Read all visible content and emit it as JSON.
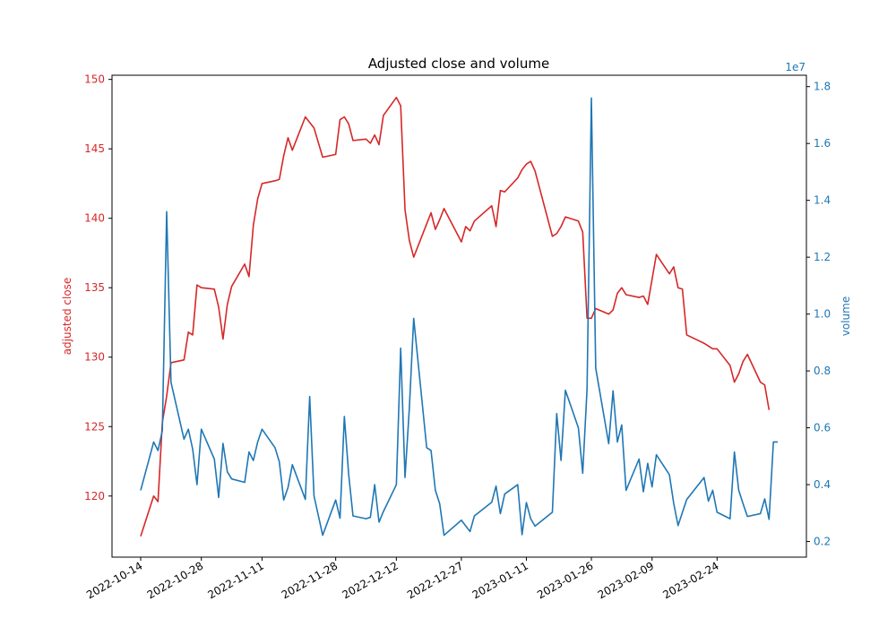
{
  "chart_data": {
    "type": "line",
    "title": "Adjusted close and volume",
    "x_dates": [
      "2022-10-14",
      "2022-10-17",
      "2022-10-18",
      "2022-10-19",
      "2022-10-20",
      "2022-10-21",
      "2022-10-24",
      "2022-10-25",
      "2022-10-26",
      "2022-10-27",
      "2022-10-28",
      "2022-10-31",
      "2022-11-01",
      "2022-11-02",
      "2022-11-03",
      "2022-11-04",
      "2022-11-07",
      "2022-11-08",
      "2022-11-09",
      "2022-11-10",
      "2022-11-11",
      "2022-11-14",
      "2022-11-15",
      "2022-11-16",
      "2022-11-17",
      "2022-11-18",
      "2022-11-21",
      "2022-11-22",
      "2022-11-23",
      "2022-11-25",
      "2022-11-28",
      "2022-11-29",
      "2022-11-30",
      "2022-12-01",
      "2022-12-02",
      "2022-12-05",
      "2022-12-06",
      "2022-12-07",
      "2022-12-08",
      "2022-12-09",
      "2022-12-12",
      "2022-12-13",
      "2022-12-14",
      "2022-12-15",
      "2022-12-16",
      "2022-12-19",
      "2022-12-20",
      "2022-12-21",
      "2022-12-22",
      "2022-12-23",
      "2022-12-27",
      "2022-12-28",
      "2022-12-29",
      "2022-12-30",
      "2023-01-03",
      "2023-01-04",
      "2023-01-05",
      "2023-01-06",
      "2023-01-09",
      "2023-01-10",
      "2023-01-11",
      "2023-01-12",
      "2023-01-13",
      "2023-01-17",
      "2023-01-18",
      "2023-01-19",
      "2023-01-20",
      "2023-01-23",
      "2023-01-24",
      "2023-01-25",
      "2023-01-26",
      "2023-01-27",
      "2023-01-30",
      "2023-01-31",
      "2023-02-01",
      "2023-02-02",
      "2023-02-03",
      "2023-02-06",
      "2023-02-07",
      "2023-02-08",
      "2023-02-09",
      "2023-02-10",
      "2023-02-13",
      "2023-02-14",
      "2023-02-15",
      "2023-02-16",
      "2023-02-17",
      "2023-02-21",
      "2023-02-22",
      "2023-02-23",
      "2023-02-24",
      "2023-02-27",
      "2023-02-28",
      "2023-03-01",
      "2023-03-02",
      "2023-03-03",
      "2023-03-06",
      "2023-03-07",
      "2023-03-08",
      "2023-03-09",
      "2023-03-10"
    ],
    "series": [
      {
        "name": "adjusted close",
        "axis": "left",
        "color": "#d62728",
        "values": [
          117.1,
          120.0,
          119.6,
          125.3,
          127.2,
          129.6,
          129.8,
          131.8,
          131.6,
          135.2,
          135.0,
          134.9,
          133.6,
          131.3,
          133.8,
          135.1,
          136.7,
          135.8,
          139.5,
          141.4,
          142.5,
          142.7,
          142.8,
          144.5,
          145.8,
          144.9,
          147.3,
          146.9,
          146.5,
          144.4,
          144.6,
          147.1,
          147.3,
          146.8,
          145.6,
          145.7,
          145.4,
          146.0,
          145.3,
          147.4,
          148.7,
          148.1,
          140.6,
          138.4,
          137.2,
          139.6,
          140.4,
          139.2,
          139.9,
          140.7,
          138.3,
          139.4,
          139.1,
          139.8,
          140.9,
          139.4,
          142.0,
          141.9,
          142.9,
          143.5,
          143.9,
          144.1,
          143.4,
          138.7,
          138.9,
          139.4,
          140.1,
          139.8,
          139.0,
          132.8,
          132.8,
          133.5,
          133.1,
          133.4,
          134.6,
          135.0,
          134.5,
          134.3,
          134.4,
          133.8,
          135.6,
          137.4,
          136.0,
          136.5,
          135.0,
          134.9,
          131.6,
          131.0,
          130.8,
          130.6,
          130.6,
          129.4,
          128.2,
          128.8,
          129.7,
          130.2,
          128.2,
          128.0,
          126.2
        ]
      },
      {
        "name": "volume",
        "axis": "right",
        "color": "#1f77b4",
        "values": [
          3800000,
          5500000,
          5200000,
          5900000,
          13600000,
          7600000,
          5600000,
          5950000,
          5250000,
          4000000,
          5950000,
          4900000,
          3550000,
          5450000,
          4450000,
          4200000,
          4080000,
          5150000,
          4850000,
          5500000,
          5950000,
          5300000,
          4800000,
          3460000,
          3900000,
          4700000,
          3480000,
          7100000,
          3600000,
          2220000,
          3460000,
          2820000,
          6400000,
          4350000,
          2900000,
          2800000,
          2850000,
          4000000,
          2680000,
          3050000,
          4000000,
          8800000,
          4250000,
          6700000,
          9850000,
          5300000,
          5200000,
          3800000,
          3330000,
          2220000,
          2750000,
          2550000,
          2350000,
          2900000,
          3380000,
          3950000,
          2980000,
          3670000,
          4000000,
          2240000,
          3370000,
          2800000,
          2540000,
          3030000,
          6500000,
          4850000,
          7320000,
          6000000,
          4400000,
          7360000,
          17600000,
          8100000,
          5440000,
          7300000,
          5500000,
          6100000,
          3800000,
          4900000,
          3750000,
          4750000,
          3920000,
          5050000,
          4350000,
          3340000,
          2560000,
          3020000,
          3480000,
          4250000,
          3420000,
          3800000,
          3030000,
          2800000,
          5150000,
          3800000,
          3330000,
          2880000,
          2980000,
          3500000,
          2780000,
          5500000,
          5500000
        ]
      }
    ],
    "x_ticks": [
      "2022-10-14",
      "2022-10-28",
      "2022-11-11",
      "2022-11-28",
      "2022-12-12",
      "2022-12-27",
      "2023-01-11",
      "2023-01-26",
      "2023-02-09",
      "2023-02-24"
    ],
    "left_axis": {
      "label": "adjusted close",
      "ticks": [
        "120",
        "125",
        "130",
        "135",
        "140",
        "145",
        "150"
      ],
      "ylim": [
        115.6,
        150.3
      ],
      "color": "#d62728"
    },
    "right_axis": {
      "label": "volume",
      "ticks": [
        "0.2",
        "0.4",
        "0.6",
        "0.8",
        "1.0",
        "1.2",
        "1.4",
        "1.6",
        "1.8"
      ],
      "multiplier": "1e7",
      "ylim": [
        1450000,
        18400000
      ],
      "color": "#1f77b4"
    },
    "grid": false,
    "legend": "none"
  }
}
